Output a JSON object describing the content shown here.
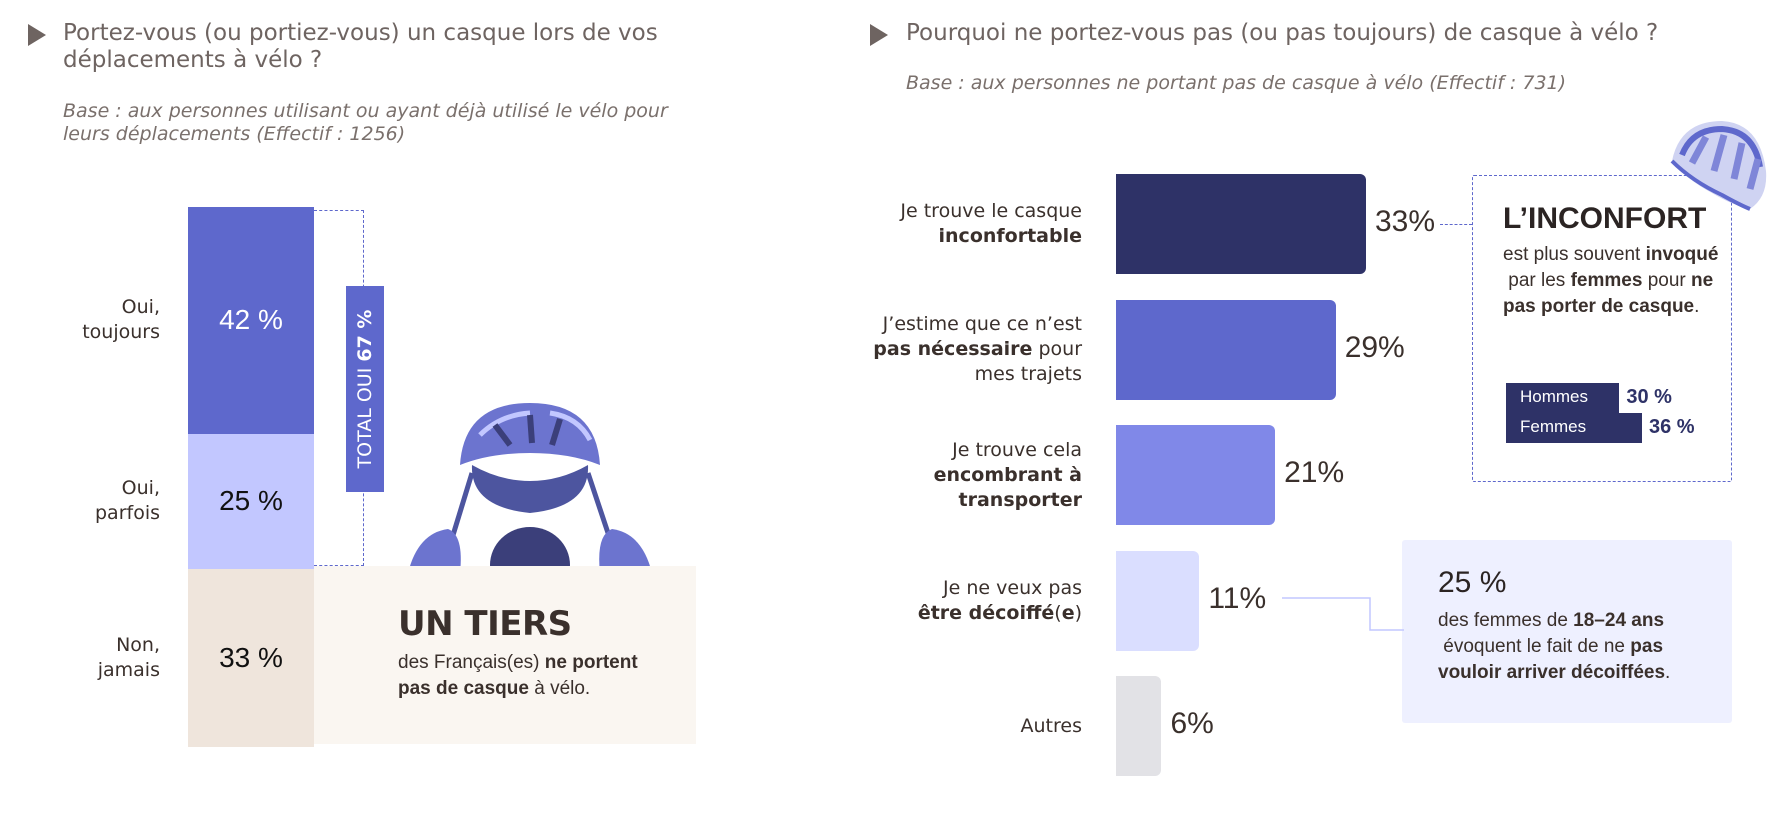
{
  "left": {
    "title_line1": "Portez-vous (ou portiez-vous) un casque lors de vos",
    "title_line2": "déplacements à vélo ?",
    "base_line1": "Base : aux personnes utilisant ou ayant déjà utilisé le vélo pour",
    "base_line2": "leurs déplacements (Effectif : 1256)",
    "total_prefix": "TOTAL OUI ",
    "total_value": "67 %",
    "tiers": {
      "title": "UN TIERS",
      "t1": "des Français(es) ",
      "b1": "ne portent",
      "b2": "pas de casque",
      "t2": " à vélo."
    }
  },
  "right": {
    "title": "Pourquoi ne portez-vous pas (ou pas toujours) de casque à vélo ?",
    "base": "Base : aux personnes ne portant pas de casque à vélo (Effectif : 731)",
    "inconfort": {
      "title": "L’INCONFORT",
      "t1": "est plus souvent ",
      "b1": "invoqué",
      "t2": " par les ",
      "b2": "femmes",
      "t3": " pour ",
      "b3": "ne pas porter de casque",
      "t4": ".",
      "bars": [
        {
          "label": "Hommes",
          "value": "30 %",
          "color": "#2e3267"
        },
        {
          "label": "Femmes",
          "value": "36 %",
          "color": "#2e3267"
        }
      ]
    },
    "young": {
      "value": "25 %",
      "t1": "des femmes de ",
      "b1": "18–24 ans",
      "t2": " évoquent le fait de ne ",
      "b2": "pas vouloir arriver décoiffées",
      "t3": "."
    }
  },
  "colors": {
    "navy": "#2e3267",
    "blue": "#5e68cc",
    "mid": "#8088e8",
    "light": "#c2c7ff",
    "pale": "#dadeff",
    "grey": "#e2e2e6",
    "beige": "#efe5dc",
    "cream": "#faf6f1"
  },
  "chart_data": [
    {
      "type": "bar",
      "stacked": true,
      "categories": [
        "Oui, toujours",
        "Oui, parfois",
        "Non, jamais"
      ],
      "values": [
        42,
        25,
        33
      ],
      "value_labels": [
        "42 %",
        "25 %",
        "33 %"
      ],
      "label_lines": [
        [
          "Oui,",
          "toujours"
        ],
        [
          "Oui,",
          "parfois"
        ],
        [
          "Non,",
          "jamais"
        ]
      ],
      "colors": [
        "#5e68cc",
        "#c2c7ff",
        "#efe5dc"
      ],
      "text_colors": [
        "#ffffff",
        "#111111",
        "#111111"
      ],
      "ylim": [
        0,
        100
      ]
    },
    {
      "type": "bar",
      "orientation": "horizontal",
      "categories": [
        "Je trouve le casque inconfortable",
        "J’estime que ce n’est pas nécessaire pour mes trajets",
        "Je trouve cela encombrant à transporter",
        "Je ne veux pas être décoiffé(e)",
        "Autres"
      ],
      "label_parts": [
        [
          [
            "Je trouve le casque",
            ""
          ],
          [
            "",
            "inconfortable"
          ]
        ],
        [
          [
            "J’estime que ce n’est",
            ""
          ],
          [
            "",
            "pas nécessaire",
            " pour"
          ],
          [
            "mes trajets",
            ""
          ]
        ],
        [
          [
            "Je trouve cela",
            ""
          ],
          [
            "",
            "encombrant à"
          ],
          [
            "",
            "transporter"
          ]
        ],
        [
          [
            "Je ne veux pas",
            ""
          ],
          [
            "",
            "être décoiffé",
            "(",
            "e",
            ")"
          ]
        ],
        [
          [
            "Autres",
            ""
          ]
        ]
      ],
      "values": [
        33,
        29,
        21,
        11,
        6
      ],
      "value_labels": [
        "33%",
        "29%",
        "21%",
        "11%",
        "6%"
      ],
      "colors": [
        "#2e3267",
        "#5e68cc",
        "#8088e8",
        "#dadeff",
        "#e2e2e6"
      ],
      "xlim": [
        0,
        33
      ]
    }
  ]
}
